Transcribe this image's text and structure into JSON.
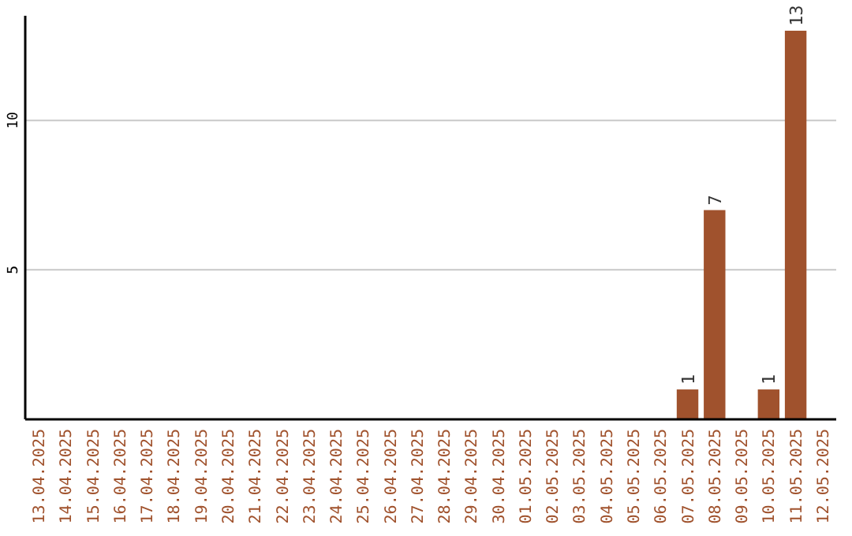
{
  "chart_data": {
    "type": "bar",
    "categories": [
      "13.04.2025",
      "14.04.2025",
      "15.04.2025",
      "16.04.2025",
      "17.04.2025",
      "18.04.2025",
      "19.04.2025",
      "20.04.2025",
      "21.04.2025",
      "22.04.2025",
      "23.04.2025",
      "24.04.2025",
      "25.04.2025",
      "26.04.2025",
      "27.04.2025",
      "28.04.2025",
      "29.04.2025",
      "30.04.2025",
      "01.05.2025",
      "02.05.2025",
      "03.05.2025",
      "04.05.2025",
      "05.05.2025",
      "06.05.2025",
      "07.05.2025",
      "08.05.2025",
      "09.05.2025",
      "10.05.2025",
      "11.05.2025",
      "12.05.2025"
    ],
    "values": [
      0,
      0,
      0,
      0,
      0,
      0,
      0,
      0,
      0,
      0,
      0,
      0,
      0,
      0,
      0,
      0,
      0,
      0,
      0,
      0,
      0,
      0,
      0,
      0,
      1,
      7,
      0,
      1,
      13,
      0
    ],
    "value_labels": [
      null,
      null,
      null,
      null,
      null,
      null,
      null,
      null,
      null,
      null,
      null,
      null,
      null,
      null,
      null,
      null,
      null,
      null,
      null,
      null,
      null,
      null,
      null,
      null,
      "1",
      "7",
      null,
      "1",
      "13",
      null
    ],
    "color": "#a0522d",
    "ylim": [
      0,
      13.5
    ],
    "yticks": [
      5,
      10
    ],
    "grid": "y"
  }
}
